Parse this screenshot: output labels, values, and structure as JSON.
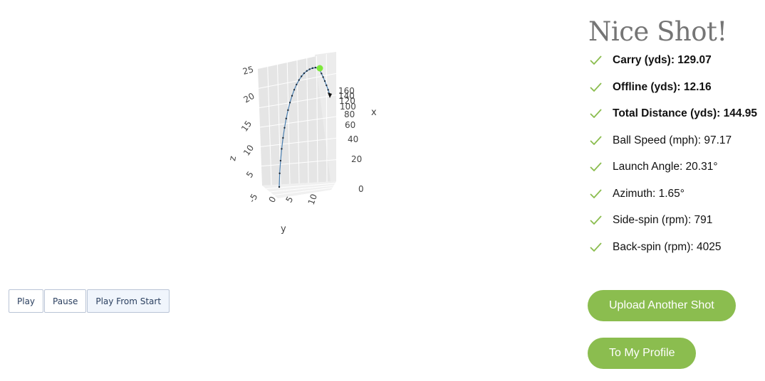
{
  "plot": {
    "axis_titles": {
      "x": "x",
      "y": "y",
      "z": "z"
    },
    "z_ticks": [
      "5",
      "10",
      "15",
      "20",
      "25"
    ],
    "y_ticks": [
      "-5",
      "0",
      "5",
      "10"
    ],
    "x_ticks": [
      "0",
      "20",
      "40",
      "60",
      "80",
      "100",
      "120",
      "140",
      "160"
    ],
    "trajectory_color": "#4a7fb0",
    "ball_color": "#7de83a",
    "chart_data": {
      "type": "scatter",
      "mode": "3d-line",
      "axes": [
        "x",
        "y",
        "z"
      ],
      "z_range": [
        0,
        25
      ],
      "y_range": [
        -5,
        10
      ],
      "x_range": [
        0,
        160
      ]
    }
  },
  "controls": {
    "play_label": "Play",
    "pause_label": "Pause",
    "play_from_start_label": "Play From Start"
  },
  "results": {
    "title": "Nice Shot!",
    "check_color": "#8bbd4f",
    "stats": [
      {
        "label": "Carry (yds): 129.07",
        "bold": true
      },
      {
        "label": "Offline (yds): 12.16",
        "bold": true
      },
      {
        "label": "Total Distance (yds): 144.95",
        "bold": true
      },
      {
        "label": "Ball Speed (mph): 97.17",
        "bold": false
      },
      {
        "label": "Launch Angle: 20.31°",
        "bold": false
      },
      {
        "label": "Azimuth: 1.65°",
        "bold": false
      },
      {
        "label": "Side-spin (rpm): 791",
        "bold": false
      },
      {
        "label": "Back-spin (rpm): 4025",
        "bold": false
      }
    ]
  },
  "actions": {
    "upload_label": "Upload Another Shot",
    "profile_label": "To My Profile",
    "button_color": "#8bbd4f"
  }
}
